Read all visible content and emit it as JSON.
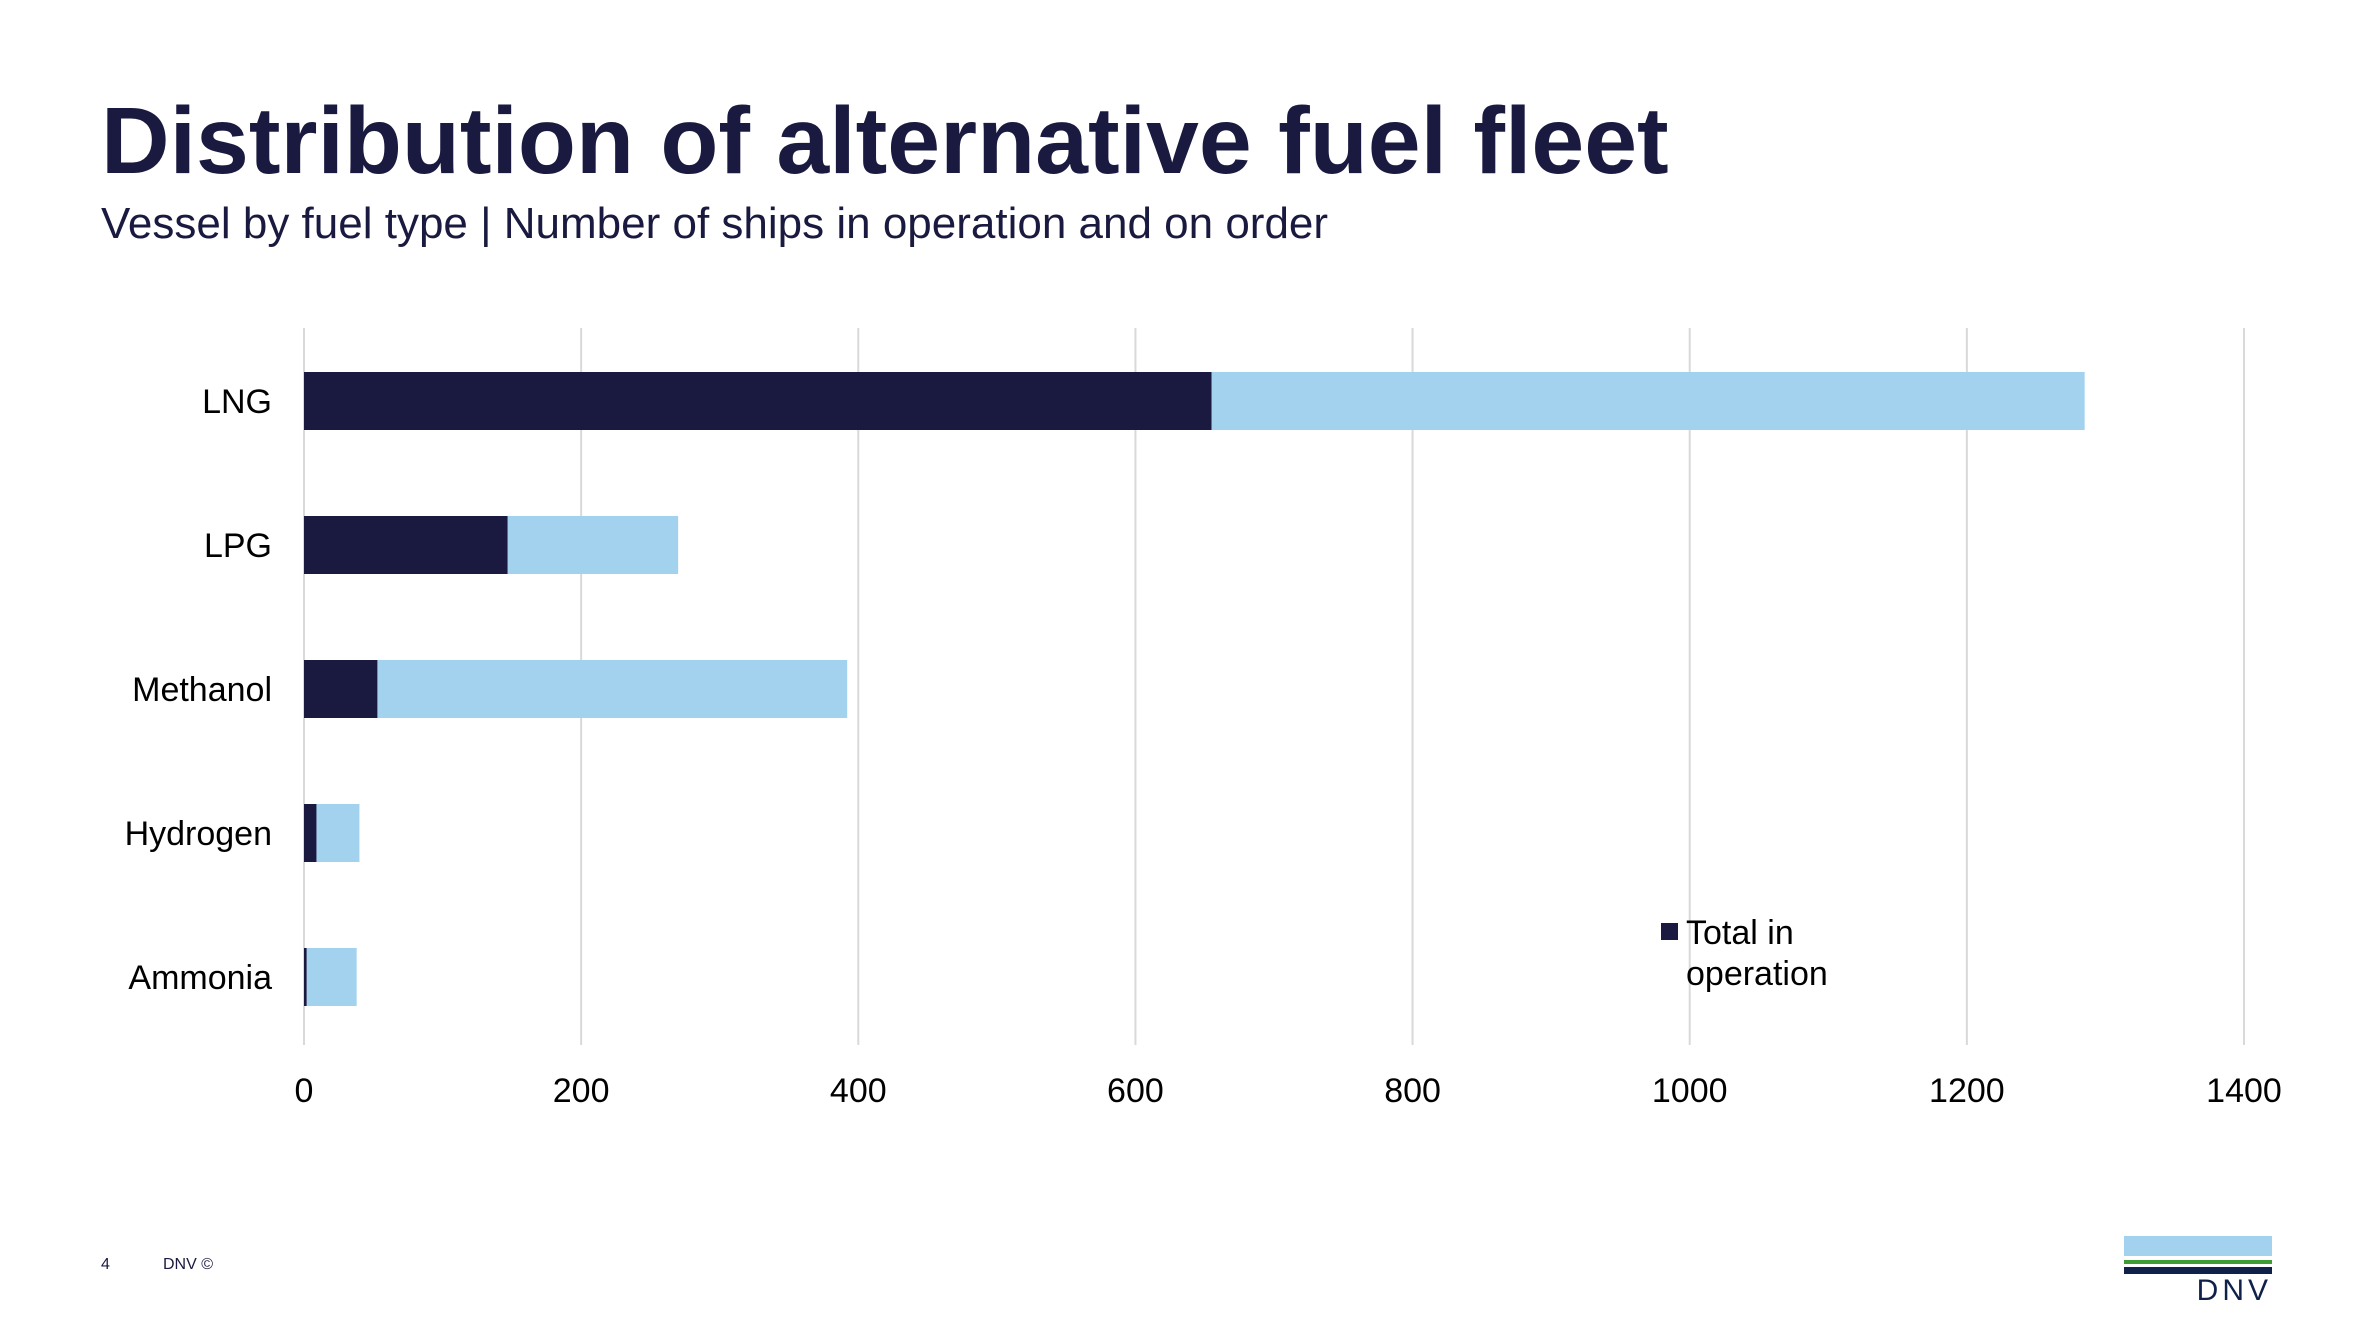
{
  "slide": {
    "title": "Distribution of alternative fuel fleet",
    "subtitle": "Vessel by fuel type | Number of ships in operation and on order"
  },
  "footer": {
    "page_number": "4",
    "brand": "DNV ©"
  },
  "logo": {
    "text": "DNV"
  },
  "colors": {
    "title": "#1a1a40",
    "in_operation": "#1a1a40",
    "on_order": "#a3d2ef",
    "gridline": "#d9d9d9",
    "logo_light": "#a3d2ef",
    "logo_green": "#3f9c35",
    "logo_dark": "#0f204b"
  },
  "chart_data": {
    "type": "bar",
    "orientation": "horizontal",
    "stacked": true,
    "categories": [
      "LNG",
      "LPG",
      "Methanol",
      "Hydrogen",
      "Ammonia"
    ],
    "series": [
      {
        "name": "Total in operation",
        "values": [
          655,
          147,
          53,
          9,
          2
        ]
      },
      {
        "values": [
          630,
          123,
          339,
          31,
          36
        ]
      }
    ],
    "xlim": [
      0,
      1400
    ],
    "xticks": [
      0,
      200,
      400,
      600,
      800,
      1000,
      1200,
      1400
    ],
    "grid": true,
    "legend": {
      "position": "bottom-right",
      "entries": [
        "Total in operation"
      ]
    }
  }
}
